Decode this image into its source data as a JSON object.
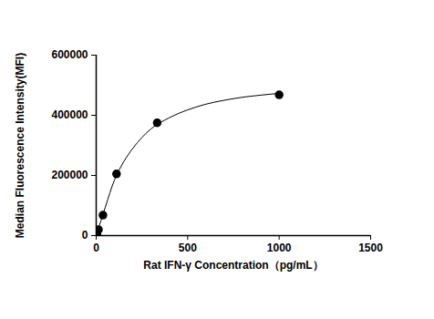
{
  "chart_data": {
    "type": "scatter",
    "x_label": "Rat IFN-γ Concentration（pg/mL）",
    "y_label": "Median Fluorescence Intensity(MFI)",
    "x": [
      1.37,
      4.12,
      12.35,
      37.04,
      111.1,
      333.3,
      1000
    ],
    "values": [
      2000,
      5000,
      20000,
      68000,
      205000,
      375000,
      468000
    ],
    "fit": {
      "x": [
        0,
        25,
        50,
        100,
        150,
        200,
        300,
        400,
        500,
        600,
        700,
        800,
        900,
        1000
      ],
      "values": [
        0,
        48000,
        95000,
        185000,
        245000,
        290000,
        355000,
        392000,
        418000,
        437000,
        450000,
        460000,
        467000,
        473000
      ]
    },
    "color": "#000000",
    "marker": "circle",
    "line_style": "solid",
    "xlim": [
      0,
      1500
    ],
    "xticks": [
      0,
      500,
      1000,
      1500
    ],
    "ylim": [
      0,
      600000
    ],
    "yticks": [
      0,
      200000,
      400000,
      600000
    ],
    "grid": false
  }
}
